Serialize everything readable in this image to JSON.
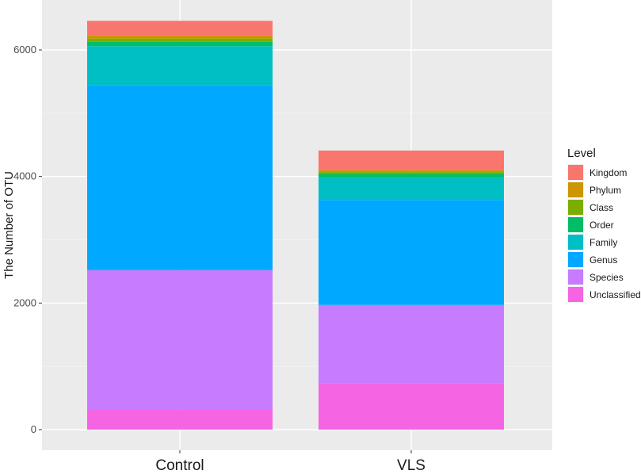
{
  "chart_data": {
    "type": "bar",
    "stacked": true,
    "categories": [
      "Control",
      "VLS"
    ],
    "ylabel": "The Number of OTU",
    "xlabel": "",
    "ylim": [
      0,
      6700
    ],
    "yticks": [
      0,
      2000,
      4000,
      6000
    ],
    "yticklabels": [
      "0",
      "2000",
      "4000",
      "6000"
    ],
    "grid": true,
    "legend": {
      "title": "Level",
      "position": "right"
    },
    "series": [
      {
        "name": "Unclassified",
        "color": "#F564E3",
        "values": [
          320,
          730
        ]
      },
      {
        "name": "Species",
        "color": "#C77CFF",
        "values": [
          2200,
          1240
        ]
      },
      {
        "name": "Genus",
        "color": "#00A9FF",
        "values": [
          2920,
          1660
        ]
      },
      {
        "name": "Family",
        "color": "#00BFC4",
        "values": [
          620,
          360
        ]
      },
      {
        "name": "Order",
        "color": "#00BE67",
        "values": [
          70,
          50
        ]
      },
      {
        "name": "Class",
        "color": "#7CAE00",
        "values": [
          50,
          30
        ]
      },
      {
        "name": "Phylum",
        "color": "#CD9600",
        "values": [
          50,
          30
        ]
      },
      {
        "name": "Kingdom",
        "color": "#F8766D",
        "values": [
          230,
          310
        ]
      }
    ],
    "legend_order": [
      "Kingdom",
      "Phylum",
      "Class",
      "Order",
      "Family",
      "Genus",
      "Species",
      "Unclassified"
    ]
  }
}
